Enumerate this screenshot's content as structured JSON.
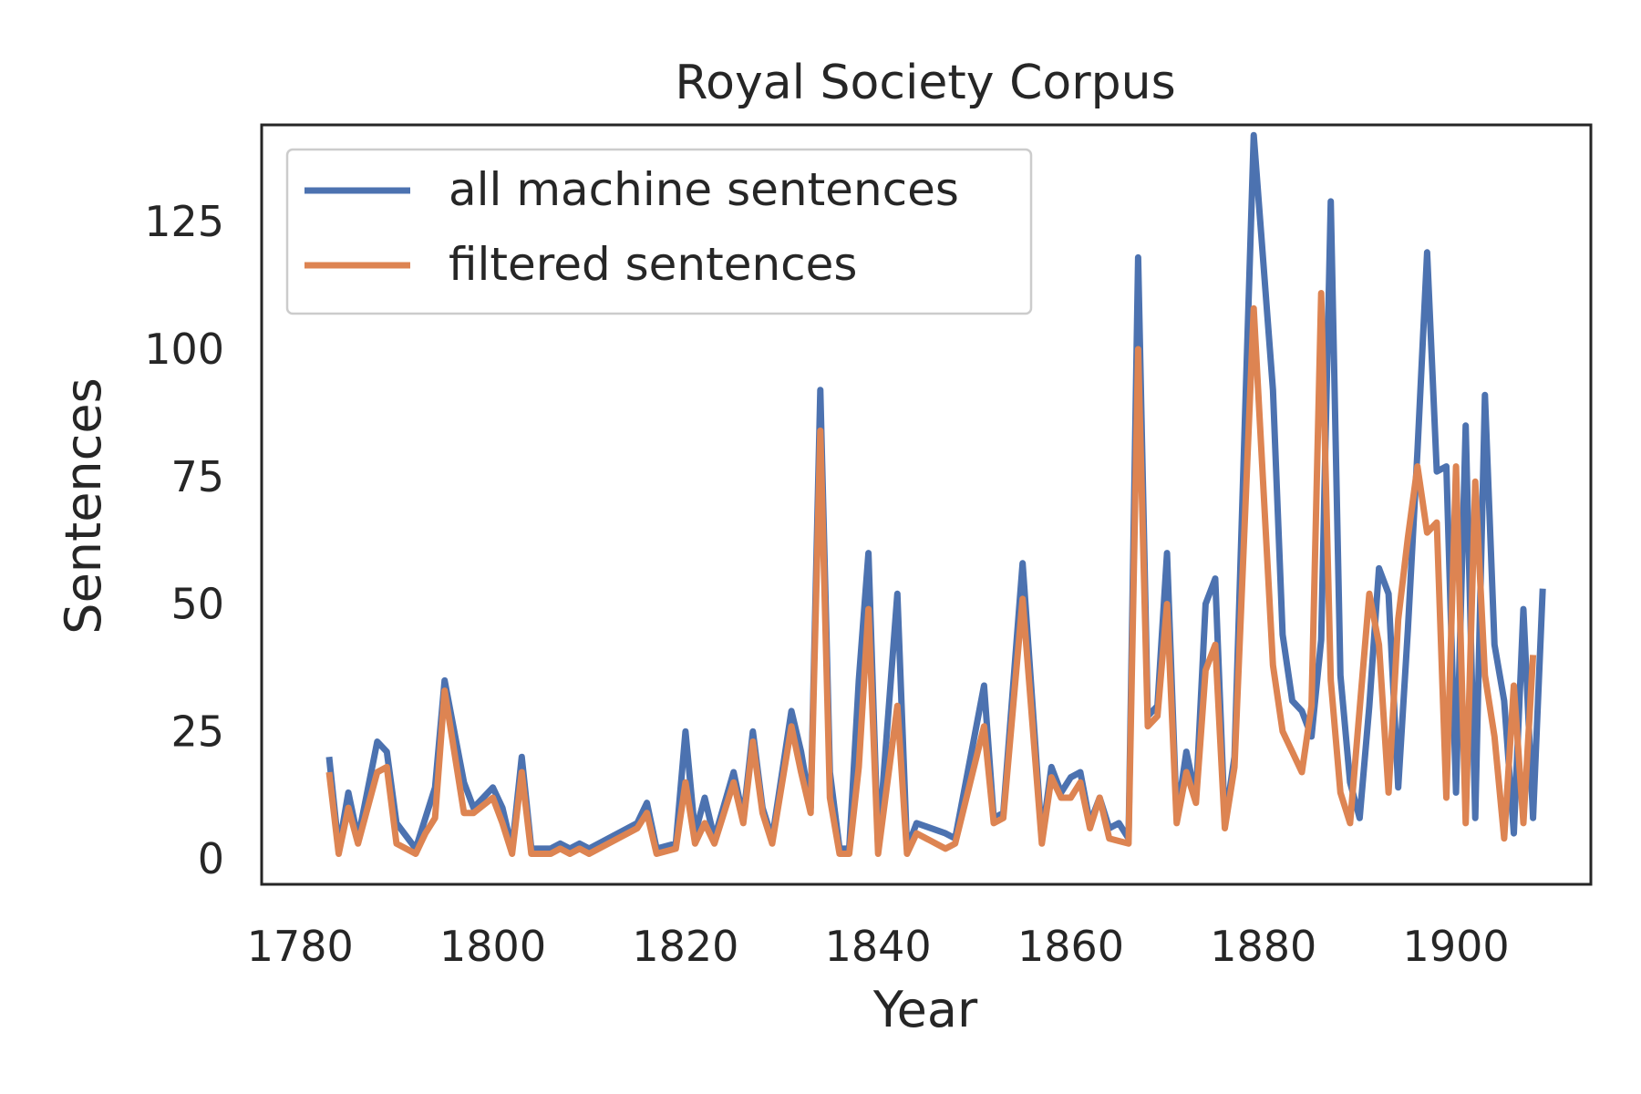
{
  "chart_data": {
    "type": "line",
    "title": "Royal Society Corpus",
    "xlabel": "Year",
    "ylabel": "Sentences",
    "xlim": [
      1776,
      1914
    ],
    "ylim": [
      -5,
      144
    ],
    "x_ticks": [
      1780,
      1800,
      1820,
      1840,
      1860,
      1880,
      1900
    ],
    "y_ticks": [
      0,
      25,
      50,
      75,
      100,
      125
    ],
    "grid": false,
    "legend_position": "top-left",
    "series": [
      {
        "name": "all machine sentences",
        "color": "#4c72b0",
        "points": [
          [
            1783,
            20
          ],
          [
            1784,
            2
          ],
          [
            1785,
            13
          ],
          [
            1786,
            4
          ],
          [
            1788,
            23
          ],
          [
            1789,
            21
          ],
          [
            1790,
            7
          ],
          [
            1792,
            2
          ],
          [
            1794,
            14
          ],
          [
            1795,
            35
          ],
          [
            1797,
            15
          ],
          [
            1798,
            10
          ],
          [
            1800,
            14
          ],
          [
            1801,
            10
          ],
          [
            1802,
            2
          ],
          [
            1803,
            20
          ],
          [
            1804,
            2
          ],
          [
            1806,
            2
          ],
          [
            1807,
            3
          ],
          [
            1808,
            2
          ],
          [
            1809,
            3
          ],
          [
            1810,
            2
          ],
          [
            1815,
            7
          ],
          [
            1816,
            11
          ],
          [
            1817,
            2
          ],
          [
            1819,
            3
          ],
          [
            1820,
            25
          ],
          [
            1821,
            5
          ],
          [
            1822,
            12
          ],
          [
            1823,
            4
          ],
          [
            1825,
            17
          ],
          [
            1826,
            8
          ],
          [
            1827,
            25
          ],
          [
            1828,
            10
          ],
          [
            1829,
            4
          ],
          [
            1831,
            29
          ],
          [
            1832,
            21
          ],
          [
            1833,
            10
          ],
          [
            1834,
            92
          ],
          [
            1835,
            17
          ],
          [
            1836,
            2
          ],
          [
            1837,
            2
          ],
          [
            1838,
            35
          ],
          [
            1839,
            60
          ],
          [
            1840,
            2
          ],
          [
            1842,
            52
          ],
          [
            1843,
            2
          ],
          [
            1844,
            7
          ],
          [
            1847,
            5
          ],
          [
            1848,
            4
          ],
          [
            1851,
            34
          ],
          [
            1852,
            8
          ],
          [
            1853,
            9
          ],
          [
            1855,
            58
          ],
          [
            1857,
            4
          ],
          [
            1858,
            18
          ],
          [
            1859,
            13
          ],
          [
            1860,
            16
          ],
          [
            1861,
            17
          ],
          [
            1862,
            7
          ],
          [
            1863,
            12
          ],
          [
            1864,
            6
          ],
          [
            1865,
            7
          ],
          [
            1866,
            4
          ],
          [
            1867,
            118
          ],
          [
            1868,
            28
          ],
          [
            1869,
            30
          ],
          [
            1870,
            60
          ],
          [
            1871,
            8
          ],
          [
            1872,
            21
          ],
          [
            1873,
            12
          ],
          [
            1874,
            50
          ],
          [
            1875,
            55
          ],
          [
            1876,
            7
          ],
          [
            1877,
            20
          ],
          [
            1879,
            142
          ],
          [
            1881,
            92
          ],
          [
            1882,
            44
          ],
          [
            1883,
            31
          ],
          [
            1884,
            29
          ],
          [
            1885,
            24
          ],
          [
            1886,
            43
          ],
          [
            1887,
            129
          ],
          [
            1888,
            36
          ],
          [
            1889,
            15
          ],
          [
            1890,
            8
          ],
          [
            1891,
            30
          ],
          [
            1892,
            57
          ],
          [
            1893,
            52
          ],
          [
            1894,
            14
          ],
          [
            1895,
            45
          ],
          [
            1896,
            80
          ],
          [
            1897,
            119
          ],
          [
            1898,
            76
          ],
          [
            1899,
            77
          ],
          [
            1900,
            13
          ],
          [
            1901,
            85
          ],
          [
            1902,
            8
          ],
          [
            1903,
            91
          ],
          [
            1904,
            42
          ],
          [
            1905,
            31
          ],
          [
            1906,
            5
          ],
          [
            1907,
            49
          ],
          [
            1908,
            8
          ],
          [
            1909,
            53
          ]
        ]
      },
      {
        "name": "filtered sentences",
        "color": "#dd8452",
        "points": [
          [
            1783,
            17
          ],
          [
            1784,
            1
          ],
          [
            1785,
            10
          ],
          [
            1786,
            3
          ],
          [
            1788,
            17
          ],
          [
            1789,
            18
          ],
          [
            1790,
            3
          ],
          [
            1792,
            1
          ],
          [
            1793,
            5
          ],
          [
            1794,
            8
          ],
          [
            1795,
            33
          ],
          [
            1797,
            9
          ],
          [
            1798,
            9
          ],
          [
            1800,
            12
          ],
          [
            1801,
            7
          ],
          [
            1802,
            1
          ],
          [
            1803,
            17
          ],
          [
            1804,
            1
          ],
          [
            1806,
            1
          ],
          [
            1807,
            2
          ],
          [
            1808,
            1
          ],
          [
            1809,
            2
          ],
          [
            1810,
            1
          ],
          [
            1815,
            6
          ],
          [
            1816,
            9
          ],
          [
            1817,
            1
          ],
          [
            1819,
            2
          ],
          [
            1820,
            15
          ],
          [
            1821,
            3
          ],
          [
            1822,
            7
          ],
          [
            1823,
            3
          ],
          [
            1825,
            15
          ],
          [
            1826,
            7
          ],
          [
            1827,
            23
          ],
          [
            1828,
            9
          ],
          [
            1829,
            3
          ],
          [
            1831,
            26
          ],
          [
            1832,
            17
          ],
          [
            1833,
            9
          ],
          [
            1834,
            84
          ],
          [
            1835,
            12
          ],
          [
            1836,
            1
          ],
          [
            1837,
            1
          ],
          [
            1838,
            18
          ],
          [
            1839,
            49
          ],
          [
            1840,
            1
          ],
          [
            1842,
            30
          ],
          [
            1843,
            1
          ],
          [
            1844,
            5
          ],
          [
            1847,
            2
          ],
          [
            1848,
            3
          ],
          [
            1851,
            26
          ],
          [
            1852,
            7
          ],
          [
            1853,
            8
          ],
          [
            1855,
            51
          ],
          [
            1857,
            3
          ],
          [
            1858,
            16
          ],
          [
            1859,
            12
          ],
          [
            1860,
            12
          ],
          [
            1861,
            15
          ],
          [
            1862,
            6
          ],
          [
            1863,
            12
          ],
          [
            1864,
            4
          ],
          [
            1866,
            3
          ],
          [
            1867,
            100
          ],
          [
            1868,
            26
          ],
          [
            1869,
            28
          ],
          [
            1870,
            50
          ],
          [
            1871,
            7
          ],
          [
            1872,
            17
          ],
          [
            1873,
            11
          ],
          [
            1874,
            37
          ],
          [
            1875,
            42
          ],
          [
            1876,
            6
          ],
          [
            1877,
            18
          ],
          [
            1879,
            108
          ],
          [
            1881,
            38
          ],
          [
            1882,
            25
          ],
          [
            1883,
            21
          ],
          [
            1884,
            17
          ],
          [
            1885,
            30
          ],
          [
            1886,
            111
          ],
          [
            1887,
            35
          ],
          [
            1888,
            13
          ],
          [
            1889,
            7
          ],
          [
            1891,
            52
          ],
          [
            1892,
            42
          ],
          [
            1893,
            13
          ],
          [
            1894,
            47
          ],
          [
            1895,
            63
          ],
          [
            1896,
            77
          ],
          [
            1897,
            64
          ],
          [
            1898,
            66
          ],
          [
            1899,
            12
          ],
          [
            1900,
            77
          ],
          [
            1901,
            7
          ],
          [
            1902,
            74
          ],
          [
            1903,
            36
          ],
          [
            1904,
            24
          ],
          [
            1905,
            4
          ],
          [
            1906,
            34
          ],
          [
            1907,
            7
          ],
          [
            1908,
            40
          ]
        ]
      }
    ]
  }
}
